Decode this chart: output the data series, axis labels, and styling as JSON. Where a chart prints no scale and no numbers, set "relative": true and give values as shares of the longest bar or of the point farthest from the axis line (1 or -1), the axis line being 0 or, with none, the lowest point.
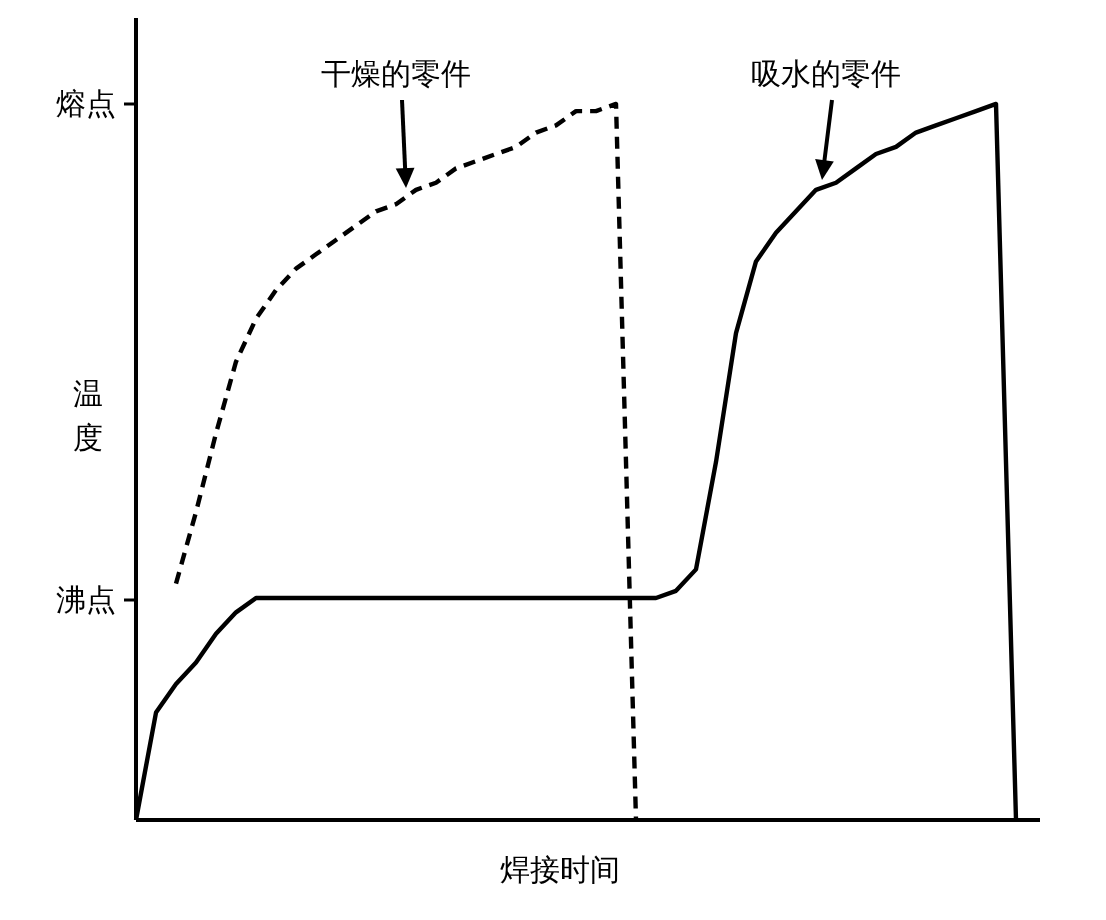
{
  "chart_data": {
    "type": "line",
    "relative": true,
    "xlabel": "焊接时间",
    "ylabel": "温度",
    "categories": [
      null,
      null,
      null,
      null,
      null,
      null,
      null,
      null,
      null,
      null,
      null,
      null,
      null,
      null,
      null,
      null,
      null,
      null,
      null,
      null,
      null,
      null,
      null,
      null,
      null,
      null,
      null,
      null,
      null,
      null,
      null,
      null,
      null,
      null,
      null,
      null,
      null,
      null,
      null,
      null,
      null,
      null,
      null,
      null,
      null
    ],
    "series": [
      {
        "color": "#000000",
        "line_style": "dashed",
        "values": [
          null,
          null,
          0.33,
          0.43,
          0.54,
          0.64,
          0.7,
          0.74,
          0.77,
          0.79,
          0.81,
          0.83,
          0.85,
          0.86,
          0.88,
          0.89,
          0.91,
          0.92,
          0.93,
          0.94,
          0.96,
          0.97,
          0.99,
          0.99,
          1.0,
          0,
          null,
          null,
          null,
          null,
          null,
          null,
          null,
          null,
          null,
          null,
          null,
          null,
          null,
          null,
          null,
          null,
          null,
          null,
          null
        ]
      },
      {
        "color": "#000000",
        "line_style": "solid",
        "values": [
          0,
          0.15,
          0.19,
          0.22,
          0.26,
          0.29,
          0.31,
          0.31,
          0.31,
          0.31,
          0.31,
          0.31,
          0.31,
          0.31,
          0.31,
          0.31,
          0.31,
          0.31,
          0.31,
          0.31,
          0.31,
          0.31,
          0.31,
          0.31,
          0.31,
          0.31,
          0.31,
          0.32,
          0.35,
          0.5,
          0.68,
          0.78,
          0.82,
          0.85,
          0.88,
          0.89,
          0.91,
          0.93,
          0.94,
          0.96,
          0.97,
          0.98,
          0.99,
          1.0,
          0
        ]
      }
    ],
    "annotations": [
      "熔点",
      "沸点",
      "干燥的零件",
      "吸水的零件"
    ]
  }
}
